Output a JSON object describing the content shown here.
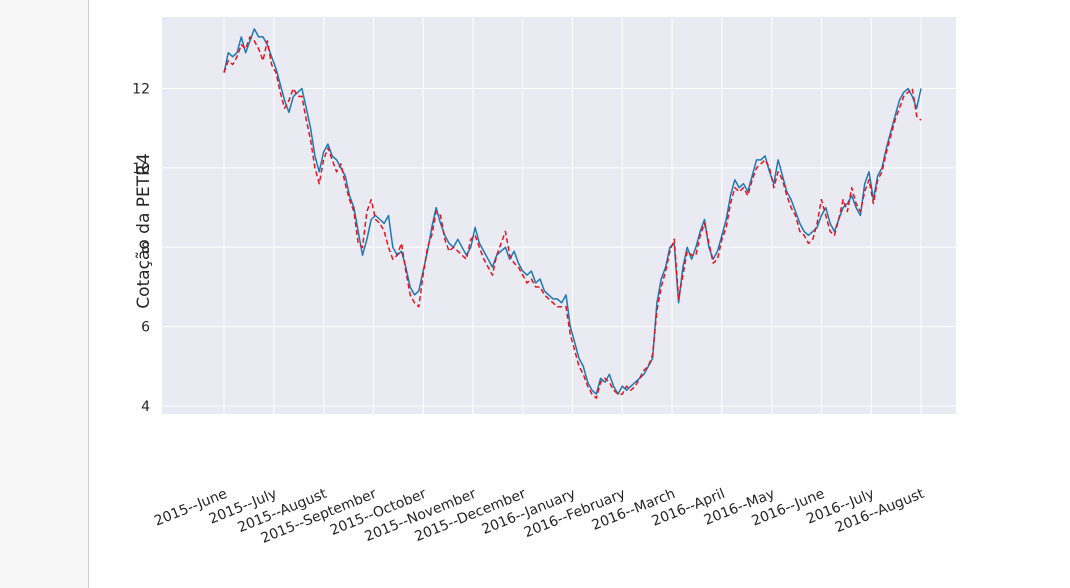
{
  "chart_data": {
    "type": "line",
    "title": "",
    "xlabel": "",
    "ylabel": "Cotação da PETR4",
    "ylim": [
      3.8,
      13.8
    ],
    "yticks": [
      4,
      6,
      8,
      10,
      12
    ],
    "grid": true,
    "style": "seaborn-darkgrid",
    "x_tick_labels": [
      "2015--June",
      "2015--July",
      "2015--August",
      "2015--September",
      "2015--October",
      "2015--November",
      "2015--December",
      "2016--January",
      "2016--February",
      "2016--March",
      "2016--April",
      "2016--May",
      "2016--June",
      "2016--July",
      "2016--August"
    ],
    "series": [
      {
        "color": "#1f77b4",
        "linestyle": "solid",
        "values": [
          12.4,
          12.9,
          12.8,
          12.9,
          13.3,
          12.9,
          13.2,
          13.5,
          13.3,
          13.3,
          13.1,
          12.8,
          12.5,
          12.1,
          11.7,
          11.4,
          11.8,
          11.9,
          12.0,
          11.5,
          11.0,
          10.3,
          9.9,
          10.4,
          10.6,
          10.3,
          10.2,
          10.0,
          9.8,
          9.3,
          9.0,
          8.4,
          7.8,
          8.2,
          8.7,
          8.8,
          8.7,
          8.6,
          8.8,
          8.0,
          7.8,
          7.9,
          7.5,
          7.0,
          6.8,
          6.9,
          7.4,
          7.9,
          8.5,
          9.0,
          8.6,
          8.3,
          8.1,
          8.0,
          8.2,
          8.0,
          7.8,
          8.0,
          8.5,
          8.1,
          7.9,
          7.7,
          7.5,
          7.8,
          7.9,
          8.0,
          7.7,
          7.9,
          7.6,
          7.4,
          7.3,
          7.4,
          7.1,
          7.2,
          6.9,
          6.8,
          6.7,
          6.7,
          6.6,
          6.8,
          6.0,
          5.6,
          5.2,
          5.0,
          4.6,
          4.4,
          4.3,
          4.7,
          4.6,
          4.8,
          4.5,
          4.3,
          4.5,
          4.4,
          4.5,
          4.6,
          4.7,
          4.8,
          5.0,
          5.2,
          6.6,
          7.2,
          7.5,
          8.0,
          8.1,
          6.6,
          7.5,
          8.0,
          7.7,
          8.0,
          8.4,
          8.7,
          8.0,
          7.7,
          7.9,
          8.3,
          8.7,
          9.3,
          9.7,
          9.5,
          9.6,
          9.4,
          9.8,
          10.2,
          10.2,
          10.3,
          9.9,
          9.6,
          10.2,
          9.8,
          9.4,
          9.2,
          8.9,
          8.6,
          8.4,
          8.3,
          8.4,
          8.5,
          8.8,
          9.0,
          8.6,
          8.4,
          8.7,
          9.0,
          9.1,
          9.3,
          9.0,
          8.8,
          9.6,
          9.9,
          9.2,
          9.8,
          10.0,
          10.5,
          10.9,
          11.3,
          11.7,
          11.9,
          12.0,
          11.8,
          11.5,
          12.0
        ]
      },
      {
        "color": "#e8121e",
        "linestyle": "dashed",
        "values": [
          12.4,
          12.7,
          12.6,
          12.8,
          13.1,
          13.0,
          13.3,
          13.2,
          13.0,
          12.7,
          13.2,
          12.6,
          12.4,
          11.9,
          11.5,
          11.7,
          12.0,
          11.8,
          11.8,
          11.2,
          10.7,
          10.0,
          9.6,
          10.2,
          10.5,
          10.2,
          9.9,
          10.1,
          9.6,
          9.2,
          8.9,
          8.1,
          8.0,
          8.9,
          9.2,
          8.7,
          8.6,
          8.4,
          8.0,
          7.7,
          7.8,
          8.1,
          7.4,
          6.8,
          6.6,
          6.5,
          7.3,
          8.0,
          8.3,
          8.9,
          8.8,
          8.2,
          7.9,
          8.0,
          7.9,
          7.8,
          7.7,
          8.2,
          8.3,
          8.0,
          7.7,
          7.5,
          7.3,
          7.8,
          8.1,
          8.4,
          7.8,
          7.6,
          7.5,
          7.3,
          7.1,
          7.2,
          7.0,
          7.0,
          6.8,
          6.7,
          6.6,
          6.5,
          6.5,
          6.5,
          5.8,
          5.4,
          5.0,
          4.8,
          4.5,
          4.3,
          4.2,
          4.6,
          4.7,
          4.6,
          4.4,
          4.3,
          4.3,
          4.5,
          4.4,
          4.5,
          4.7,
          4.9,
          5.0,
          5.3,
          6.4,
          7.0,
          7.4,
          7.9,
          8.2,
          6.7,
          7.3,
          7.9,
          7.8,
          7.8,
          8.3,
          8.6,
          8.1,
          7.6,
          7.7,
          8.2,
          8.5,
          9.1,
          9.5,
          9.4,
          9.5,
          9.3,
          9.7,
          10.0,
          10.1,
          10.2,
          10.0,
          9.5,
          9.9,
          9.7,
          9.3,
          9.0,
          8.8,
          8.4,
          8.3,
          8.1,
          8.2,
          8.6,
          9.2,
          8.8,
          8.4,
          8.3,
          8.7,
          9.2,
          8.9,
          9.5,
          9.1,
          8.9,
          9.4,
          9.7,
          9.1,
          9.7,
          9.9,
          10.4,
          10.8,
          11.2,
          11.5,
          11.8,
          11.9,
          12.0,
          11.3,
          11.2
        ]
      }
    ]
  }
}
